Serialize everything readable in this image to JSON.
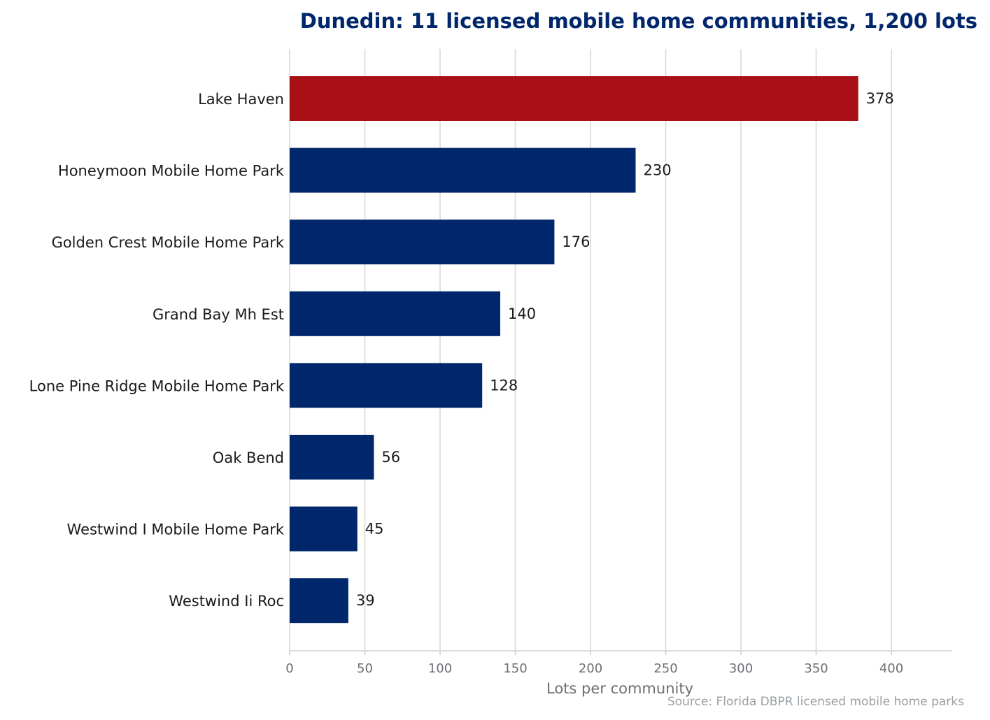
{
  "chart_data": {
    "type": "bar",
    "orientation": "horizontal",
    "title": "Dunedin: 11 licensed mobile home communities, 1,200 lots",
    "xlabel": "Lots per community",
    "ylabel": "",
    "xlim": [
      0,
      440
    ],
    "xticks": [
      0,
      50,
      100,
      150,
      200,
      250,
      300,
      350,
      400
    ],
    "grid": "vertical",
    "categories": [
      "Lake Haven",
      "Honeymoon Mobile Home Park",
      "Golden Crest Mobile Home Park",
      "Grand Bay Mh Est",
      "Lone Pine Ridge Mobile Home Park",
      "Oak Bend",
      "Westwind I Mobile Home Park",
      "Westwind Ii Roc"
    ],
    "values": [
      378,
      230,
      176,
      140,
      128,
      56,
      45,
      39
    ],
    "highlight_index": 0,
    "colors": {
      "bar": "#00266b",
      "highlight": "#a81015",
      "title": "#00266b"
    },
    "source": "Source: Florida DBPR licensed mobile home parks"
  }
}
